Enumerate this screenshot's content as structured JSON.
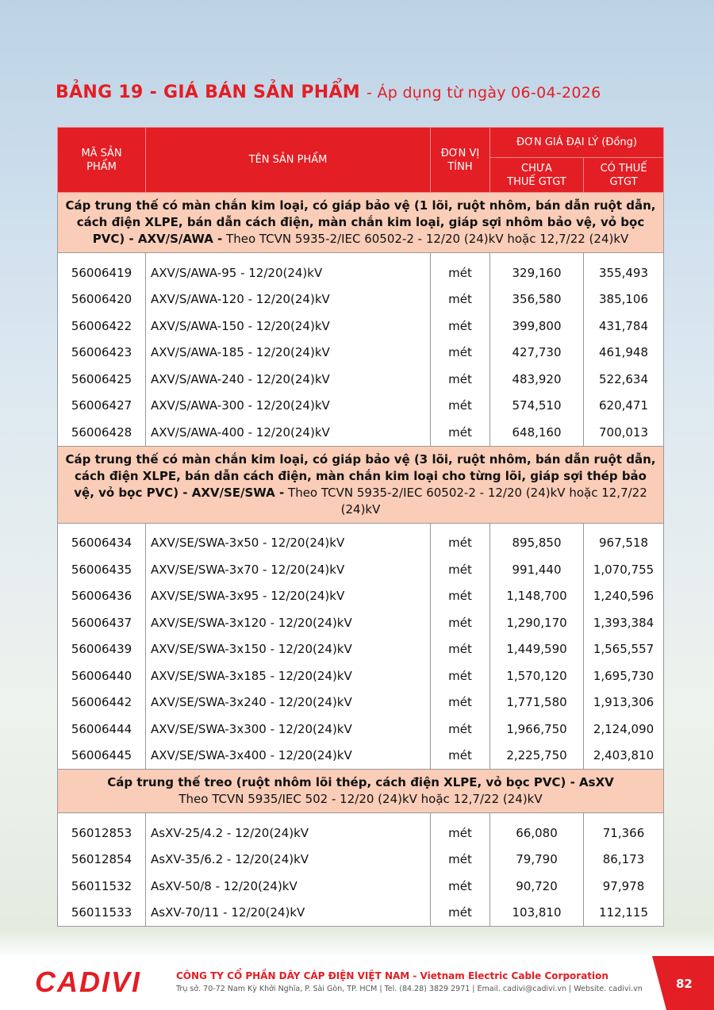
{
  "header": {
    "title": "BẢNG 19 - GIÁ BÁN SẢN PHẨM",
    "subtitle": "- Áp dụng từ ngày 06-04-2026"
  },
  "table": {
    "columns": {
      "code": "MÃ SẢN PHẨM",
      "name": "TÊN SẢN PHẨM",
      "unit": "ĐƠN VỊ TÍNH",
      "price_group": "ĐƠN GIÁ ĐẠI LÝ (Đồng)",
      "price_ex_vat": "CHƯA THUẾ GTGT",
      "price_inc_vat": "CÓ THUẾ GTGT"
    },
    "sections": [
      {
        "title": "Cáp trung thế có màn chắn kim loại, có giáp bảo vệ (1 lõi, ruột nhôm, bán dẫn ruột dẫn, cách điện XLPE, bán dẫn cách điện, màn chắn kim loại, giáp sợi nhôm bảo vệ, vỏ bọc PVC) - AXV/S/AWA -",
        "note": "Theo TCVN 5935-2/IEC 60502-2 - 12/20 (24)kV hoặc 12,7/22 (24)kV",
        "rows": [
          [
            "56006419",
            "AXV/S/AWA-95 - 12/20(24)kV",
            "mét",
            "329,160",
            "355,493"
          ],
          [
            "56006420",
            "AXV/S/AWA-120 - 12/20(24)kV",
            "mét",
            "356,580",
            "385,106"
          ],
          [
            "56006422",
            "AXV/S/AWA-150 - 12/20(24)kV",
            "mét",
            "399,800",
            "431,784"
          ],
          [
            "56006423",
            "AXV/S/AWA-185 - 12/20(24)kV",
            "mét",
            "427,730",
            "461,948"
          ],
          [
            "56006425",
            "AXV/S/AWA-240 - 12/20(24)kV",
            "mét",
            "483,920",
            "522,634"
          ],
          [
            "56006427",
            "AXV/S/AWA-300 - 12/20(24)kV",
            "mét",
            "574,510",
            "620,471"
          ],
          [
            "56006428",
            "AXV/S/AWA-400 - 12/20(24)kV",
            "mét",
            "648,160",
            "700,013"
          ]
        ]
      },
      {
        "title": "Cáp trung thế có màn chắn kim loại, có giáp bảo vệ (3 lõi, ruột nhôm, bán dẫn ruột dẫn, cách điện XLPE, bán dẫn cách điện, màn chắn kim loại cho từng lõi, giáp sợi thép bảo vệ, vỏ bọc PVC) - AXV/SE/SWA -",
        "note": "Theo TCVN 5935-2/IEC 60502-2 - 12/20 (24)kV hoặc 12,7/22 (24)kV",
        "rows": [
          [
            "56006434",
            "AXV/SE/SWA-3x50 - 12/20(24)kV",
            "mét",
            "895,850",
            "967,518"
          ],
          [
            "56006435",
            "AXV/SE/SWA-3x70 - 12/20(24)kV",
            "mét",
            "991,440",
            "1,070,755"
          ],
          [
            "56006436",
            "AXV/SE/SWA-3x95 - 12/20(24)kV",
            "mét",
            "1,148,700",
            "1,240,596"
          ],
          [
            "56006437",
            "AXV/SE/SWA-3x120 - 12/20(24)kV",
            "mét",
            "1,290,170",
            "1,393,384"
          ],
          [
            "56006439",
            "AXV/SE/SWA-3x150 - 12/20(24)kV",
            "mét",
            "1,449,590",
            "1,565,557"
          ],
          [
            "56006440",
            "AXV/SE/SWA-3x185 - 12/20(24)kV",
            "mét",
            "1,570,120",
            "1,695,730"
          ],
          [
            "56006442",
            "AXV/SE/SWA-3x240 - 12/20(24)kV",
            "mét",
            "1,771,580",
            "1,913,306"
          ],
          [
            "56006444",
            "AXV/SE/SWA-3x300 - 12/20(24)kV",
            "mét",
            "1,966,750",
            "2,124,090"
          ],
          [
            "56006445",
            "AXV/SE/SWA-3x400 - 12/20(24)kV",
            "mét",
            "2,225,750",
            "2,403,810"
          ]
        ]
      },
      {
        "title": "Cáp trung thế treo (ruột nhôm lõi thép, cách điện XLPE, vỏ bọc PVC) - AsXV",
        "note": "Theo TCVN 5935/IEC 502 - 12/20 (24)kV hoặc 12,7/22 (24)kV",
        "rows": [
          [
            "56012853",
            "AsXV-25/4.2 - 12/20(24)kV",
            "mét",
            "66,080",
            "71,366"
          ],
          [
            "56012854",
            "AsXV-35/6.2 - 12/20(24)kV",
            "mét",
            "79,790",
            "86,173"
          ],
          [
            "56011532",
            "AsXV-50/8 - 12/20(24)kV",
            "mét",
            "90,720",
            "97,978"
          ],
          [
            "56011533",
            "AsXV-70/11 - 12/20(24)kV",
            "mét",
            "103,810",
            "112,115"
          ]
        ]
      }
    ]
  },
  "footer": {
    "logo": "CADIVI",
    "company": "CÔNG TY CỔ PHẦN DÂY CÁP ĐIỆN VIỆT NAM - Vietnam Electric Cable Corporation",
    "address": "Trụ sở. 70-72 Nam Kỳ Khởi Nghĩa, P. Sài Gòn, TP. HCM | Tel. (84.28) 3829 2971 | Email. cadivi@cadivi.vn | Website. cadivi.vn",
    "page": "82"
  }
}
